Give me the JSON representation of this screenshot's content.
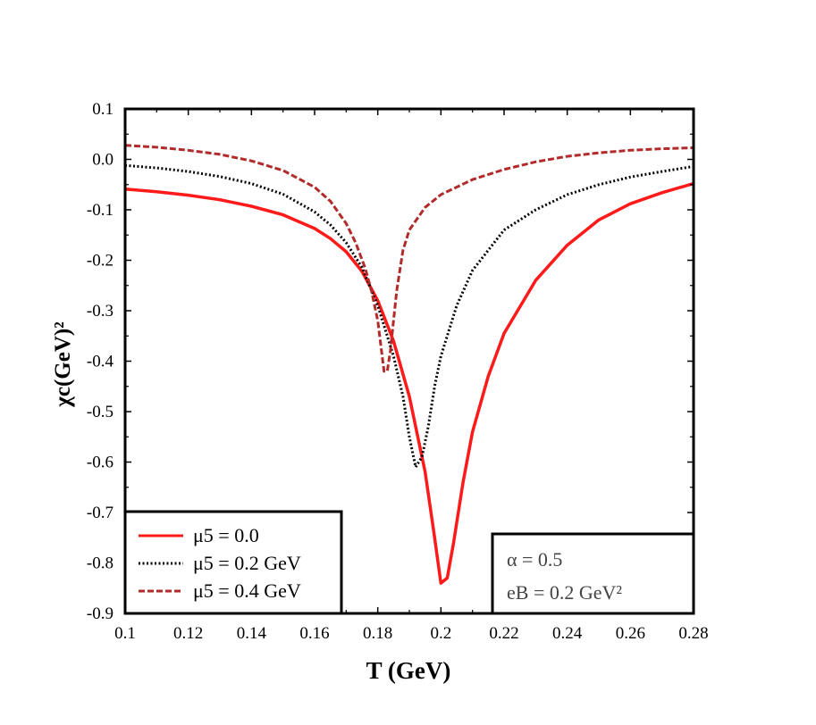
{
  "chart_data": {
    "type": "line",
    "xlabel": "T (GeV)",
    "ylabel": "χc(GeV)²",
    "xlim": [
      0.1,
      0.28
    ],
    "ylim": [
      -0.9,
      0.1
    ],
    "xticks": [
      "0.1",
      "0.12",
      "0.14",
      "0.16",
      "0.18",
      "0.2",
      "0.22",
      "0.24",
      "0.26",
      "0.28"
    ],
    "yticks": [
      "0.1",
      "0.0",
      "-0.1",
      "-0.2",
      "-0.3",
      "-0.4",
      "-0.5",
      "-0.6",
      "-0.7",
      "-0.8",
      "-0.9"
    ],
    "grid": false,
    "legend_position": "bottom-left",
    "series": [
      {
        "name": "μ5 = 0.0",
        "color": "#ff1a1a",
        "style": "solid",
        "points": [
          [
            0.1,
            -0.059
          ],
          [
            0.11,
            -0.064
          ],
          [
            0.12,
            -0.071
          ],
          [
            0.13,
            -0.08
          ],
          [
            0.14,
            -0.093
          ],
          [
            0.15,
            -0.11
          ],
          [
            0.16,
            -0.137
          ],
          [
            0.165,
            -0.157
          ],
          [
            0.17,
            -0.183
          ],
          [
            0.175,
            -0.222
          ],
          [
            0.18,
            -0.28
          ],
          [
            0.185,
            -0.36
          ],
          [
            0.19,
            -0.47
          ],
          [
            0.195,
            -0.62
          ],
          [
            0.198,
            -0.75
          ],
          [
            0.2,
            -0.84
          ],
          [
            0.202,
            -0.83
          ],
          [
            0.204,
            -0.76
          ],
          [
            0.207,
            -0.64
          ],
          [
            0.21,
            -0.54
          ],
          [
            0.215,
            -0.43
          ],
          [
            0.22,
            -0.345
          ],
          [
            0.23,
            -0.24
          ],
          [
            0.24,
            -0.17
          ],
          [
            0.25,
            -0.12
          ],
          [
            0.26,
            -0.088
          ],
          [
            0.27,
            -0.066
          ],
          [
            0.28,
            -0.048
          ]
        ]
      },
      {
        "name": "μ5 = 0.2 GeV",
        "color": "#000000",
        "style": "dotted",
        "points": [
          [
            0.1,
            -0.012
          ],
          [
            0.11,
            -0.017
          ],
          [
            0.12,
            -0.024
          ],
          [
            0.13,
            -0.034
          ],
          [
            0.14,
            -0.048
          ],
          [
            0.15,
            -0.069
          ],
          [
            0.16,
            -0.104
          ],
          [
            0.165,
            -0.13
          ],
          [
            0.17,
            -0.165
          ],
          [
            0.175,
            -0.214
          ],
          [
            0.18,
            -0.29
          ],
          [
            0.185,
            -0.39
          ],
          [
            0.188,
            -0.47
          ],
          [
            0.19,
            -0.55
          ],
          [
            0.192,
            -0.61
          ],
          [
            0.194,
            -0.59
          ],
          [
            0.196,
            -0.53
          ],
          [
            0.198,
            -0.45
          ],
          [
            0.2,
            -0.39
          ],
          [
            0.205,
            -0.29
          ],
          [
            0.21,
            -0.22
          ],
          [
            0.22,
            -0.14
          ],
          [
            0.23,
            -0.1
          ],
          [
            0.24,
            -0.07
          ],
          [
            0.25,
            -0.05
          ],
          [
            0.26,
            -0.035
          ],
          [
            0.27,
            -0.024
          ],
          [
            0.28,
            -0.014
          ]
        ]
      },
      {
        "name": "μ5 = 0.4 GeV",
        "color": "#b22a2a",
        "style": "dashed",
        "points": [
          [
            0.1,
            0.028
          ],
          [
            0.11,
            0.024
          ],
          [
            0.12,
            0.018
          ],
          [
            0.13,
            0.01
          ],
          [
            0.14,
            -0.003
          ],
          [
            0.15,
            -0.022
          ],
          [
            0.16,
            -0.055
          ],
          [
            0.165,
            -0.083
          ],
          [
            0.17,
            -0.127
          ],
          [
            0.173,
            -0.165
          ],
          [
            0.176,
            -0.215
          ],
          [
            0.178,
            -0.26
          ],
          [
            0.18,
            -0.32
          ],
          [
            0.181,
            -0.37
          ],
          [
            0.182,
            -0.42
          ],
          [
            0.183,
            -0.42
          ],
          [
            0.184,
            -0.38
          ],
          [
            0.185,
            -0.32
          ],
          [
            0.186,
            -0.26
          ],
          [
            0.188,
            -0.18
          ],
          [
            0.19,
            -0.14
          ],
          [
            0.195,
            -0.095
          ],
          [
            0.2,
            -0.07
          ],
          [
            0.21,
            -0.04
          ],
          [
            0.22,
            -0.02
          ],
          [
            0.23,
            -0.005
          ],
          [
            0.24,
            0.006
          ],
          [
            0.25,
            0.013
          ],
          [
            0.26,
            0.018
          ],
          [
            0.27,
            0.021
          ],
          [
            0.28,
            0.023
          ]
        ]
      }
    ],
    "annotations": [
      "α = 0.5",
      "eB = 0.2 GeV²"
    ]
  }
}
